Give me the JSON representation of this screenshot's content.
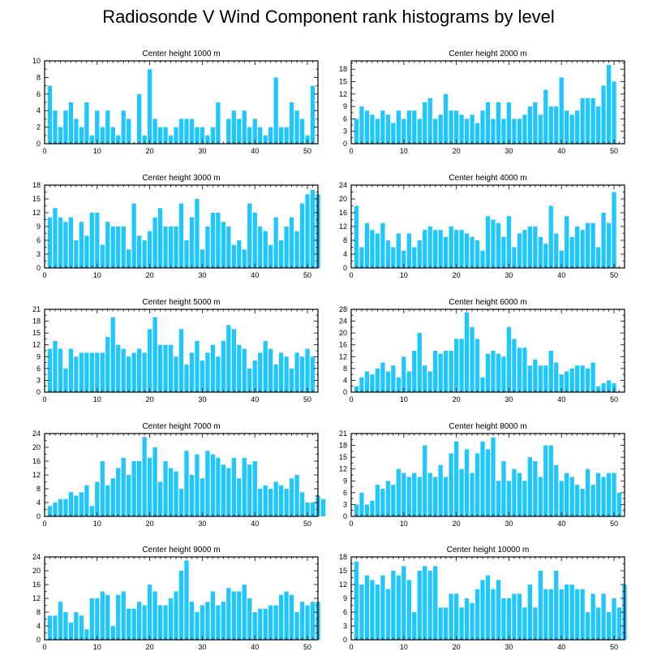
{
  "title": "Radiosonde V Wind Component rank histograms by level",
  "colors": {
    "bar": "#1ec8ff",
    "axis": "#000000",
    "background": "#ffffff"
  },
  "chart_data": [
    {
      "type": "bar",
      "title": "Center height 1000 m",
      "x_start": 1,
      "xlim": [
        0,
        52
      ],
      "ylim": [
        0,
        10
      ],
      "xticks": [
        0,
        10,
        20,
        30,
        40,
        50
      ],
      "yticks": [
        0,
        2,
        4,
        6,
        8,
        10
      ],
      "values": [
        7,
        4,
        2,
        4,
        5,
        3,
        2,
        5,
        1,
        4,
        2,
        4,
        2,
        1,
        4,
        3,
        0,
        6,
        1,
        9,
        3,
        2,
        2,
        1,
        2,
        3,
        3,
        3,
        2,
        2,
        1,
        2,
        5,
        0,
        3,
        4,
        3,
        4,
        2,
        3,
        2,
        1,
        2,
        8,
        2,
        2,
        5,
        4,
        3,
        1,
        7
      ]
    },
    {
      "type": "bar",
      "title": "Center height 2000 m",
      "x_start": 1,
      "xlim": [
        0,
        52
      ],
      "ylim": [
        0,
        20
      ],
      "xticks": [
        0,
        10,
        20,
        30,
        40,
        50
      ],
      "yticks": [
        0,
        3,
        6,
        9,
        12,
        15,
        18
      ],
      "values": [
        6,
        9,
        8,
        7,
        6,
        8,
        7,
        5,
        8,
        6,
        8,
        8,
        6,
        10,
        11,
        6,
        7,
        12,
        8,
        8,
        7,
        6,
        7,
        5,
        8,
        10,
        6,
        10,
        6,
        10,
        6,
        6,
        7,
        9,
        10,
        7,
        13,
        9,
        9,
        16,
        8,
        7,
        8,
        11,
        11,
        11,
        9,
        14,
        19,
        15
      ]
    },
    {
      "type": "bar",
      "title": "Center height 3000 m",
      "x_start": 1,
      "xlim": [
        0,
        52
      ],
      "ylim": [
        0,
        18
      ],
      "xticks": [
        0,
        10,
        20,
        30,
        40,
        50
      ],
      "yticks": [
        0,
        3,
        6,
        9,
        12,
        15,
        18
      ],
      "values": [
        11,
        13,
        11,
        10,
        11,
        6,
        10,
        7,
        12,
        12,
        5,
        10,
        9,
        9,
        9,
        4,
        14,
        7,
        6,
        8,
        11,
        13,
        9,
        9,
        9,
        14,
        6,
        11,
        15,
        4,
        9,
        12,
        12,
        10,
        9,
        5,
        6,
        4,
        14,
        12,
        9,
        8,
        5,
        11,
        6,
        9,
        11,
        8,
        14,
        16,
        17,
        16
      ]
    },
    {
      "type": "bar",
      "title": "Center height 4000 m",
      "x_start": 1,
      "xlim": [
        0,
        52
      ],
      "ylim": [
        0,
        24
      ],
      "xticks": [
        0,
        10,
        20,
        30,
        40,
        50
      ],
      "yticks": [
        0,
        4,
        8,
        12,
        16,
        20,
        24
      ],
      "values": [
        18,
        6,
        13,
        11,
        10,
        13,
        8,
        6,
        10,
        5,
        10,
        6,
        8,
        11,
        12,
        11,
        11,
        9,
        12,
        11,
        11,
        10,
        9,
        8,
        5,
        15,
        14,
        13,
        9,
        15,
        6,
        10,
        11,
        12,
        12,
        9,
        7,
        18,
        10,
        5,
        15,
        9,
        12,
        11,
        13,
        13,
        6,
        16,
        13,
        22
      ]
    },
    {
      "type": "bar",
      "title": "Center height 5000 m",
      "x_start": 1,
      "xlim": [
        0,
        52
      ],
      "ylim": [
        0,
        21
      ],
      "xticks": [
        0,
        10,
        20,
        30,
        40,
        50
      ],
      "yticks": [
        0,
        3,
        6,
        9,
        12,
        15,
        18,
        21
      ],
      "values": [
        11,
        13,
        11,
        6,
        11,
        9,
        10,
        10,
        10,
        10,
        10,
        14,
        19,
        12,
        11,
        9,
        10,
        11,
        10,
        16,
        19,
        12,
        12,
        12,
        9,
        16,
        7,
        10,
        13,
        8,
        10,
        12,
        9,
        13,
        17,
        16,
        12,
        11,
        6,
        8,
        10,
        13,
        11,
        7,
        10,
        9,
        6,
        10,
        9,
        11,
        9
      ]
    },
    {
      "type": "bar",
      "title": "Center height 6000 m",
      "x_start": 1,
      "xlim": [
        0,
        52
      ],
      "ylim": [
        0,
        28
      ],
      "xticks": [
        0,
        10,
        20,
        30,
        40,
        50
      ],
      "yticks": [
        0,
        4,
        8,
        12,
        16,
        20,
        24,
        28
      ],
      "values": [
        2,
        5,
        7,
        6,
        8,
        10,
        7,
        9,
        5,
        12,
        7,
        14,
        20,
        9,
        7,
        14,
        13,
        14,
        14,
        18,
        18,
        27,
        22,
        18,
        5,
        13,
        14,
        13,
        12,
        22,
        18,
        15,
        15,
        9,
        11,
        9,
        9,
        14,
        10,
        6,
        7,
        8,
        9,
        9,
        8,
        10,
        2,
        3,
        4,
        3
      ]
    },
    {
      "type": "bar",
      "title": "Center height 7000 m",
      "x_start": 1,
      "xlim": [
        0,
        52
      ],
      "ylim": [
        0,
        24
      ],
      "xticks": [
        0,
        10,
        20,
        30,
        40,
        50
      ],
      "yticks": [
        0,
        4,
        8,
        12,
        16,
        20,
        24
      ],
      "values": [
        3,
        4,
        5,
        5,
        7,
        6,
        7,
        9,
        3,
        10,
        16,
        9,
        11,
        14,
        17,
        12,
        16,
        16,
        23,
        17,
        20,
        10,
        16,
        14,
        13,
        8,
        19,
        12,
        18,
        11,
        19,
        18,
        17,
        15,
        14,
        17,
        11,
        17,
        15,
        16,
        8,
        9,
        8,
        10,
        9,
        8,
        11,
        12,
        7,
        4,
        4,
        6,
        5
      ]
    },
    {
      "type": "bar",
      "title": "Center height 8000 m",
      "x_start": 1,
      "xlim": [
        0,
        52
      ],
      "ylim": [
        0,
        21
      ],
      "xticks": [
        0,
        10,
        20,
        30,
        40,
        50
      ],
      "yticks": [
        0,
        3,
        6,
        9,
        12,
        15,
        18,
        21
      ],
      "values": [
        3,
        6,
        3,
        4,
        8,
        7,
        9,
        8,
        12,
        11,
        10,
        11,
        10,
        18,
        11,
        10,
        13,
        10,
        16,
        19,
        12,
        17,
        11,
        16,
        19,
        17,
        20,
        9,
        14,
        9,
        12,
        11,
        9,
        15,
        14,
        10,
        18,
        18,
        13,
        9,
        11,
        10,
        8,
        7,
        12,
        8,
        11,
        10,
        11,
        11,
        6
      ]
    },
    {
      "type": "bar",
      "title": "Center height 9000 m",
      "x_start": 1,
      "xlim": [
        0,
        52
      ],
      "ylim": [
        0,
        24
      ],
      "xticks": [
        0,
        10,
        20,
        30,
        40,
        50
      ],
      "yticks": [
        0,
        4,
        8,
        12,
        16,
        20,
        24
      ],
      "values": [
        7,
        7,
        11,
        8,
        5,
        8,
        7,
        3,
        12,
        12,
        14,
        13,
        4,
        13,
        14,
        9,
        9,
        11,
        10,
        16,
        14,
        10,
        10,
        12,
        14,
        20,
        23,
        11,
        8,
        10,
        11,
        14,
        10,
        11,
        15,
        14,
        14,
        16,
        12,
        8,
        9,
        9,
        10,
        10,
        13,
        14,
        13,
        8,
        11,
        10,
        11,
        11
      ]
    },
    {
      "type": "bar",
      "title": "Center height 10000 m",
      "x_start": 1,
      "xlim": [
        0,
        52
      ],
      "ylim": [
        0,
        18
      ],
      "xticks": [
        0,
        10,
        20,
        30,
        40,
        50
      ],
      "yticks": [
        0,
        3,
        6,
        9,
        12,
        15,
        18
      ],
      "values": [
        17,
        12,
        14,
        13,
        12,
        14,
        11,
        15,
        14,
        16,
        13,
        6,
        15,
        16,
        15,
        16,
        7,
        7,
        10,
        10,
        7,
        9,
        8,
        11,
        13,
        14,
        11,
        13,
        9,
        9,
        10,
        10,
        7,
        12,
        7,
        15,
        11,
        11,
        15,
        11,
        12,
        12,
        11,
        11,
        6,
        10,
        7,
        10,
        6,
        9,
        7,
        12
      ]
    }
  ]
}
